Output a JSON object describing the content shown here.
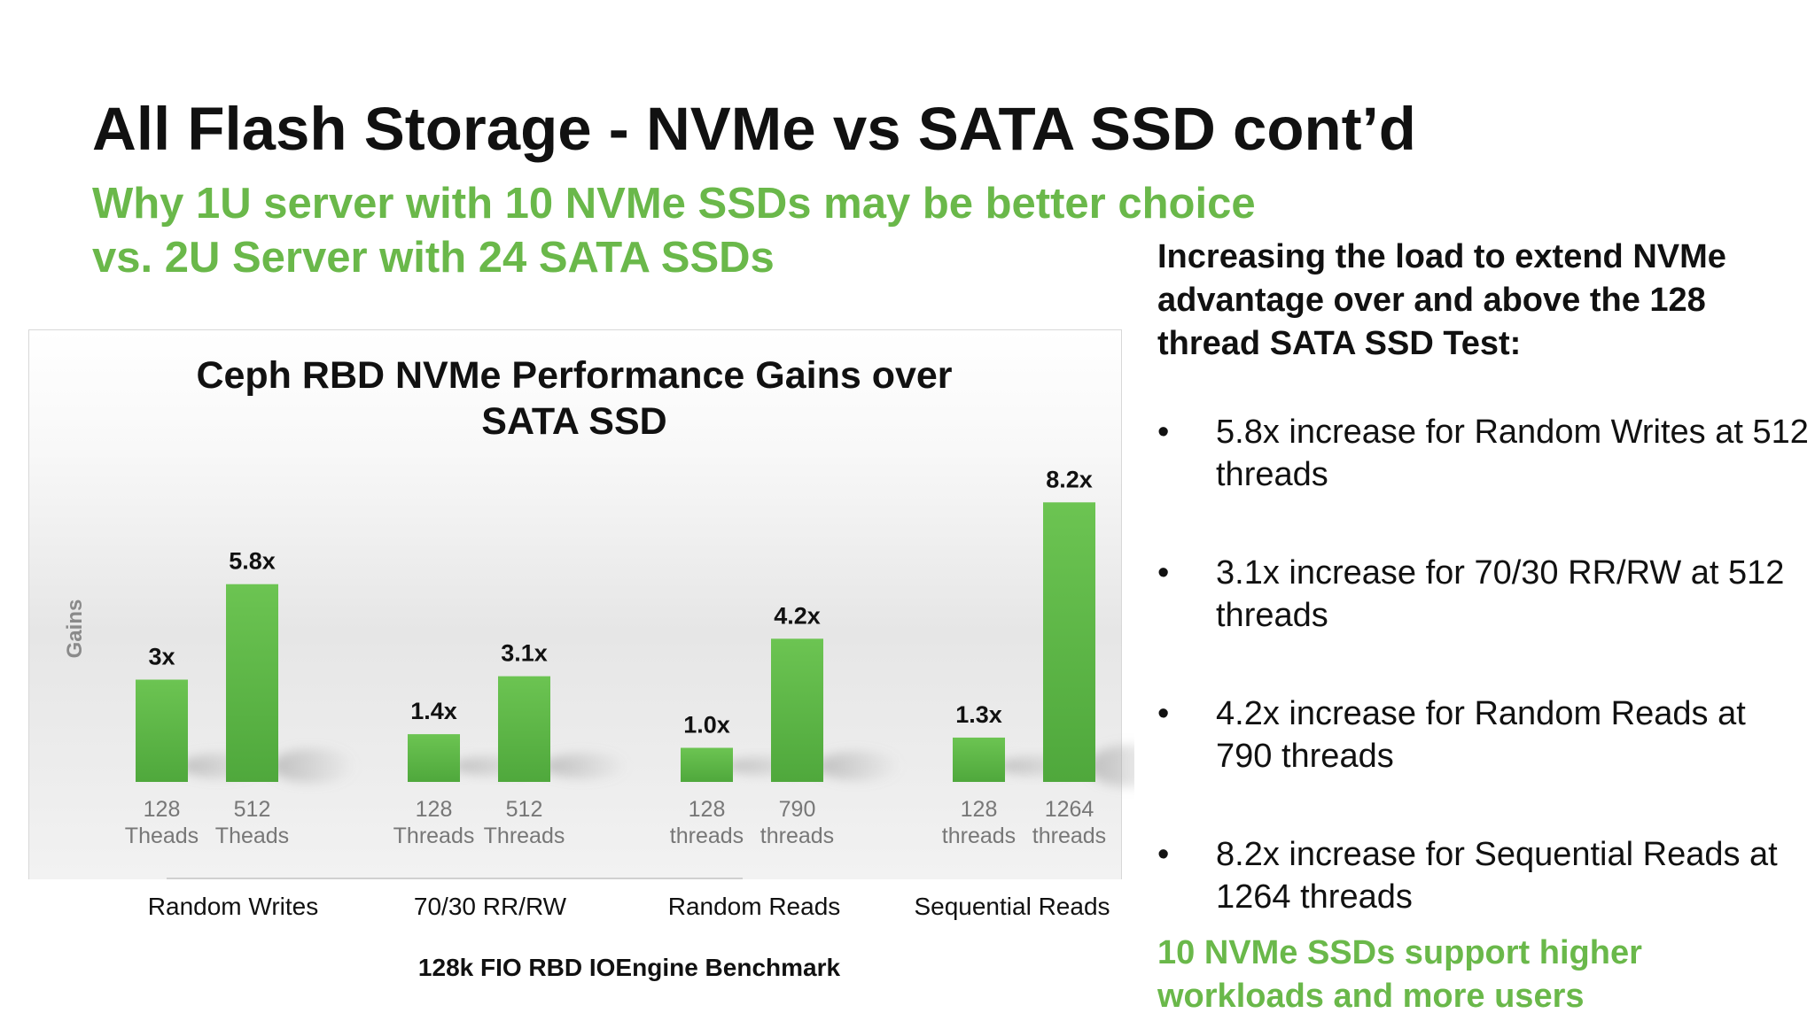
{
  "slide": {
    "title": "All Flash Storage - NVMe vs SATA SSD cont’d",
    "subtitle_lines": [
      "Why 1U server with 10 NVMe SSDs may be better choice",
      "vs. 2U Server with 24 SATA SSDs"
    ]
  },
  "right_panel": {
    "heading": "Increasing the load to extend NVMe advantage over and above the 128 thread SATA SSD Test:",
    "bullet_char": "•",
    "bullets": [
      "5.8x increase for Random Writes at 512 threads",
      "3.1x increase for 70/30 RR/RW at 512 threads",
      "4.2x increase for Random Reads at 790 threads",
      "8.2x increase for Sequential Reads at 1264 threads"
    ],
    "conclusion": "10 NVMe SSDs support higher workloads and more users"
  },
  "colors": {
    "accent_green": "#6ab84a",
    "bar_green": "#5cb547"
  },
  "chart_data": {
    "type": "bar",
    "title": "Ceph RBD NVMe Performance Gains over SATA SSD",
    "title_lines": [
      "Ceph RBD NVMe Performance Gains over",
      "SATA SSD"
    ],
    "ylabel": "Gains",
    "xlabel": "128k FIO RBD IOEngine Benchmark",
    "ylim": [
      0,
      8.2
    ],
    "grid": false,
    "legend": "none",
    "groups": [
      {
        "name": "Random Writes",
        "bars": [
          {
            "label_top": "128",
            "label_bottom": "Theads",
            "value": 3.0,
            "value_label": "3x"
          },
          {
            "label_top": "512",
            "label_bottom": "Theads",
            "value": 5.8,
            "value_label": "5.8x"
          }
        ]
      },
      {
        "name": "70/30 RR/RW",
        "bars": [
          {
            "label_top": "128",
            "label_bottom": "Threads",
            "value": 1.4,
            "value_label": "1.4x"
          },
          {
            "label_top": "512",
            "label_bottom": "Threads",
            "value": 3.1,
            "value_label": "3.1x"
          }
        ]
      },
      {
        "name": "Random Reads",
        "bars": [
          {
            "label_top": "128",
            "label_bottom": "threads",
            "value": 1.0,
            "value_label": "1.0x"
          },
          {
            "label_top": "790",
            "label_bottom": "threads",
            "value": 4.2,
            "value_label": "4.2x"
          }
        ]
      },
      {
        "name": "Sequential Reads",
        "bars": [
          {
            "label_top": "128",
            "label_bottom": "threads",
            "value": 1.3,
            "value_label": "1.3x"
          },
          {
            "label_top": "1264",
            "label_bottom": "threads",
            "value": 8.2,
            "value_label": "8.2x"
          }
        ]
      }
    ]
  }
}
